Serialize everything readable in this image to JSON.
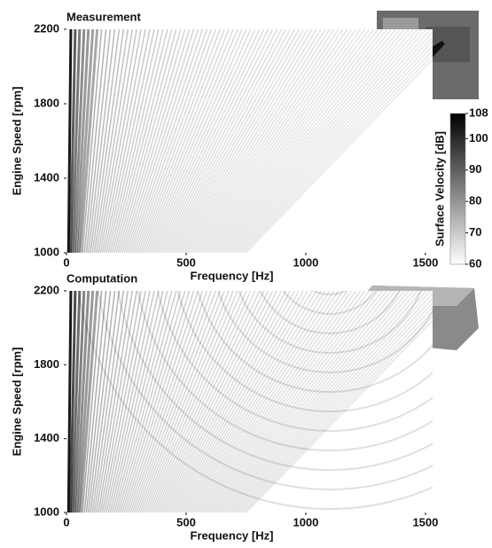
{
  "chart_data": [
    {
      "type": "heatmap",
      "title": "Measurement",
      "x_label": "Frequency [Hz]",
      "y_label": "Engine Speed [rpm]",
      "xlim": [
        0,
        1530
      ],
      "ylim": [
        1000,
        2200
      ],
      "xticks": [
        0,
        500,
        1000,
        1500
      ],
      "yticks": [
        1000,
        1400,
        1800,
        2200
      ],
      "colormap": [
        "#ffffff",
        "#000000"
      ],
      "colorbar": {
        "label": "Surface Velocity [dB]",
        "lim": [
          60,
          108
        ],
        "ticks": [
          60,
          70,
          80,
          90,
          100,
          108
        ]
      }
    },
    {
      "type": "heatmap",
      "title": "Computation",
      "x_label": "Frequency [Hz]",
      "y_label": "Engine Speed [rpm]",
      "xlim": [
        0,
        1530
      ],
      "ylim": [
        1000,
        2200
      ],
      "xticks": [
        0,
        500,
        1000,
        1500
      ],
      "yticks": [
        1000,
        1400,
        1800,
        2200
      ],
      "colormap": [
        "#ffffff",
        "#000000"
      ]
    }
  ]
}
